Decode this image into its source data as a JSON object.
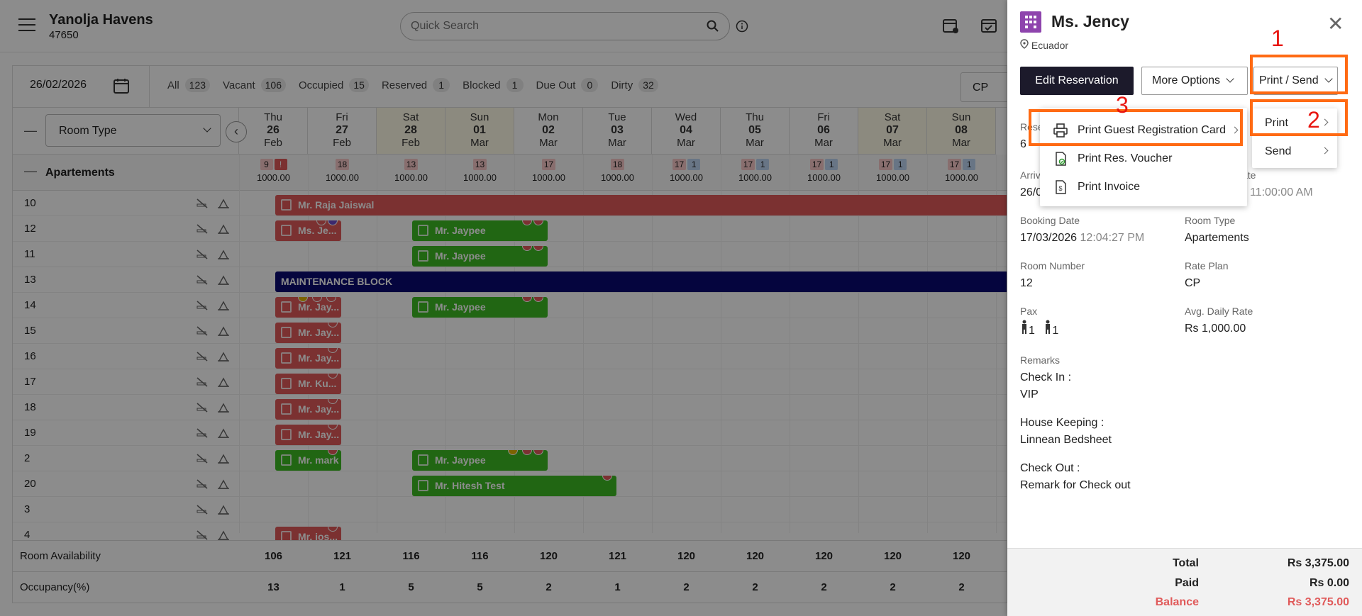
{
  "header": {
    "hotel_name": "Yanolja Havens",
    "hotel_id": "47650",
    "search_placeholder": "Quick Search"
  },
  "filters": {
    "date": "26/02/2026",
    "items": [
      {
        "label": "All",
        "count": "123"
      },
      {
        "label": "Vacant",
        "count": "106"
      },
      {
        "label": "Occupied",
        "count": "15"
      },
      {
        "label": "Reserved",
        "count": "1"
      },
      {
        "label": "Blocked",
        "count": "1"
      },
      {
        "label": "Due Out",
        "count": "0"
      },
      {
        "label": "Dirty",
        "count": "32"
      }
    ],
    "rate_plan": "CP"
  },
  "grid": {
    "room_type_label": "Room Type",
    "days": [
      {
        "dow": "Thu",
        "day": "26",
        "mon": "Feb"
      },
      {
        "dow": "Fri",
        "day": "27",
        "mon": "Feb"
      },
      {
        "dow": "Sat",
        "day": "28",
        "mon": "Feb"
      },
      {
        "dow": "Sun",
        "day": "01",
        "mon": "Mar"
      },
      {
        "dow": "Mon",
        "day": "02",
        "mon": "Mar"
      },
      {
        "dow": "Tue",
        "day": "03",
        "mon": "Mar"
      },
      {
        "dow": "Wed",
        "day": "04",
        "mon": "Mar"
      },
      {
        "dow": "Thu",
        "day": "05",
        "mon": "Mar"
      },
      {
        "dow": "Fri",
        "day": "06",
        "mon": "Mar"
      },
      {
        "dow": "Sat",
        "day": "07",
        "mon": "Mar"
      },
      {
        "dow": "Sun",
        "day": "08",
        "mon": "Mar"
      }
    ],
    "category": "Apartements",
    "cat_cells": [
      {
        "a": "9",
        "b": "!",
        "price": "1000.00"
      },
      {
        "a": "18",
        "b": "",
        "price": "1000.00"
      },
      {
        "a": "13",
        "b": "",
        "price": "1000.00"
      },
      {
        "a": "13",
        "b": "",
        "price": "1000.00"
      },
      {
        "a": "17",
        "b": "",
        "price": "1000.00"
      },
      {
        "a": "18",
        "b": "",
        "price": "1000.00"
      },
      {
        "a": "17",
        "b": "1",
        "price": "1000.00"
      },
      {
        "a": "17",
        "b": "1",
        "price": "1000.00"
      },
      {
        "a": "17",
        "b": "1",
        "price": "1000.00"
      },
      {
        "a": "17",
        "b": "1",
        "price": "1000.00"
      },
      {
        "a": "17",
        "b": "1",
        "price": "1000.00"
      }
    ],
    "rooms": [
      "10",
      "12",
      "11",
      "13",
      "14",
      "15",
      "16",
      "17",
      "18",
      "19",
      "2",
      "20",
      "3",
      "4"
    ],
    "bookings": [
      "Mr. Raja Jaiswal",
      "Ms. Je...",
      "Mr. Jaypee",
      "Mr. Jaypee",
      "MAINTENANCE BLOCK",
      "Mr. Jay...",
      "Mr. Jaypee",
      "Mr. Jay...",
      "Mr. Jay...",
      "Mr. Ku...",
      "Mr. Jay...",
      "Mr. Jay...",
      "Mr. mark",
      "Mr. Jaypee",
      "Mr. Hitesh Test",
      "Mr. jos..."
    ],
    "availability_label": "Room Availability",
    "availability": [
      "106",
      "121",
      "116",
      "116",
      "120",
      "121",
      "120",
      "120",
      "120",
      "120",
      "120"
    ],
    "occupancy_label": "Occupancy(%)",
    "occupancy": [
      "13",
      "1",
      "5",
      "5",
      "2",
      "1",
      "2",
      "2",
      "2",
      "2",
      "2"
    ]
  },
  "panel": {
    "guest": "Ms. Jency",
    "location": "Ecuador",
    "edit_btn": "Edit Reservation",
    "more_btn": "More Options",
    "print_btn": "Print / Send",
    "res_label_partial": "Rese",
    "res_value_partial": "6",
    "arrival_label_partial": "Arriv",
    "arrival_value_partial": "26/0",
    "departure_label_partial": "ate",
    "departure_time": "11:00:00 AM",
    "booking_date_label": "Booking Date",
    "booking_date": "17/03/2026",
    "booking_time": "12:04:27 PM",
    "room_type_label": "Room Type",
    "room_type": "Apartements",
    "room_number_label": "Room Number",
    "room_number": "12",
    "rate_plan_label": "Rate Plan",
    "rate_plan": "CP",
    "pax_label": "Pax",
    "pax_adults": "1",
    "pax_children": "1",
    "adr_label": "Avg. Daily Rate",
    "adr": "Rs 1,000.00",
    "remarks_label": "Remarks",
    "checkin_label": "Check In :",
    "checkin_val": "VIP",
    "hk_label": "House Keeping :",
    "hk_val": "Linnean Bedsheet",
    "checkout_label": "Check Out :",
    "checkout_val": "Remark for Check out",
    "total_label": "Total",
    "total": "Rs 3,375.00",
    "paid_label": "Paid",
    "paid": "Rs 0.00",
    "balance_label": "Balance",
    "balance": "Rs 3,375.00"
  },
  "menu_print_send": {
    "print": "Print",
    "send": "Send"
  },
  "menu_print": {
    "guest_card": "Print Guest Registration Card",
    "voucher": "Print Res. Voucher",
    "invoice": "Print Invoice"
  },
  "annotations": {
    "n1": "1",
    "n2": "2",
    "n3": "3"
  },
  "colors": {
    "accent": "#ff6a13",
    "booking_red": "#e05a5a",
    "booking_green": "#3dbb24",
    "block_navy": "#0a0a72"
  }
}
